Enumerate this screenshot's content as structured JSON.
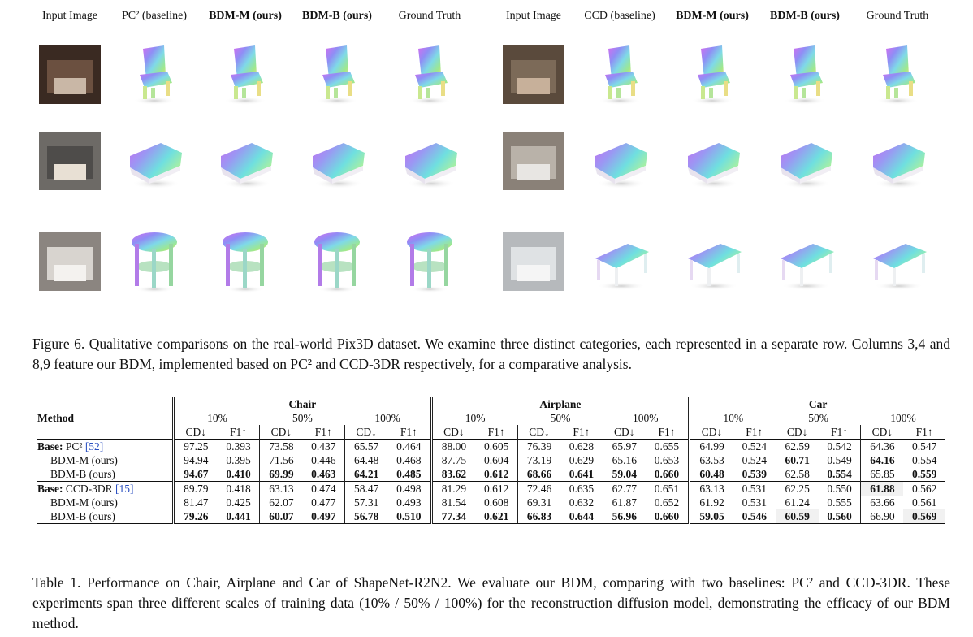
{
  "figure": {
    "left_headers": [
      "Input Image",
      "PC² (baseline)",
      "BDM-M (ours)",
      "BDM-B (ours)",
      "Ground Truth"
    ],
    "right_headers": [
      "Input Image",
      "CCD (baseline)",
      "BDM-M (ours)",
      "BDM-B (ours)",
      "Ground Truth"
    ],
    "bold_headers": [
      "BDM-M (ours)",
      "BDM-B (ours)"
    ]
  },
  "figure_caption": "Figure 6. Qualitative comparisons on the real-world Pix3D dataset. We examine three distinct categories, each represented in a separate row. Columns 3,4 and 8,9 feature our BDM, implemented based on PC² and CCD-3DR respectively, for a comparative analysis.",
  "table": {
    "method_header": "Method",
    "categories": [
      "Chair",
      "Airplane",
      "Car"
    ],
    "scales": [
      "10%",
      "50%",
      "100%"
    ],
    "metrics": [
      "CD↓",
      "F1↑"
    ],
    "groups": [
      {
        "rows": [
          {
            "label": "Base: PC² [52]",
            "values": [
              "97.25",
              "0.393",
              "73.58",
              "0.437",
              "65.57",
              "0.464",
              "88.00",
              "0.605",
              "76.39",
              "0.628",
              "65.97",
              "0.655",
              "64.99",
              "0.524",
              "62.59",
              "0.542",
              "64.36",
              "0.547"
            ],
            "bold": []
          },
          {
            "label": "BDM-M (ours)",
            "values": [
              "94.94",
              "0.395",
              "71.56",
              "0.446",
              "64.48",
              "0.468",
              "87.75",
              "0.604",
              "73.19",
              "0.629",
              "65.16",
              "0.653",
              "63.53",
              "0.524",
              "60.71",
              "0.549",
              "64.16",
              "0.554"
            ],
            "bold": [
              14,
              16
            ]
          },
          {
            "label": "BDM-B (ours)",
            "values": [
              "94.67",
              "0.410",
              "69.99",
              "0.463",
              "64.21",
              "0.485",
              "83.62",
              "0.612",
              "68.66",
              "0.641",
              "59.04",
              "0.660",
              "60.48",
              "0.539",
              "62.58",
              "0.554",
              "65.85",
              "0.559"
            ],
            "bold": [
              0,
              1,
              2,
              3,
              4,
              5,
              6,
              7,
              8,
              9,
              10,
              11,
              12,
              13,
              15,
              17
            ]
          }
        ]
      },
      {
        "rows": [
          {
            "label": "Base: CCD-3DR [15]",
            "values": [
              "89.79",
              "0.418",
              "63.13",
              "0.474",
              "58.47",
              "0.498",
              "81.29",
              "0.612",
              "72.46",
              "0.635",
              "62.77",
              "0.651",
              "63.13",
              "0.531",
              "62.25",
              "0.550",
              "61.88",
              "0.562"
            ],
            "bold": [
              16
            ]
          },
          {
            "label": "BDM-M (ours)",
            "values": [
              "81.47",
              "0.425",
              "62.07",
              "0.477",
              "57.31",
              "0.493",
              "81.54",
              "0.608",
              "69.31",
              "0.632",
              "61.87",
              "0.652",
              "61.92",
              "0.531",
              "61.24",
              "0.555",
              "63.66",
              "0.561"
            ],
            "bold": []
          },
          {
            "label": "BDM-B (ours)",
            "values": [
              "79.26",
              "0.441",
              "60.07",
              "0.497",
              "56.78",
              "0.510",
              "77.34",
              "0.621",
              "66.83",
              "0.644",
              "56.96",
              "0.660",
              "59.05",
              "0.546",
              "60.59",
              "0.560",
              "66.90",
              "0.569"
            ],
            "bold": [
              0,
              1,
              2,
              3,
              4,
              5,
              6,
              7,
              8,
              9,
              10,
              11,
              12,
              13,
              14,
              15,
              17
            ]
          }
        ]
      }
    ]
  },
  "table_caption": "Table 1. Performance on Chair, Airplane and Car of ShapeNet-R2N2. We evaluate our BDM, comparing with two baselines: PC² and CCD-3DR. These experiments span three different scales of training data (10% / 50% / 100%) for the reconstruction diffusion model, demonstrating the efficacy of our BDM method."
}
